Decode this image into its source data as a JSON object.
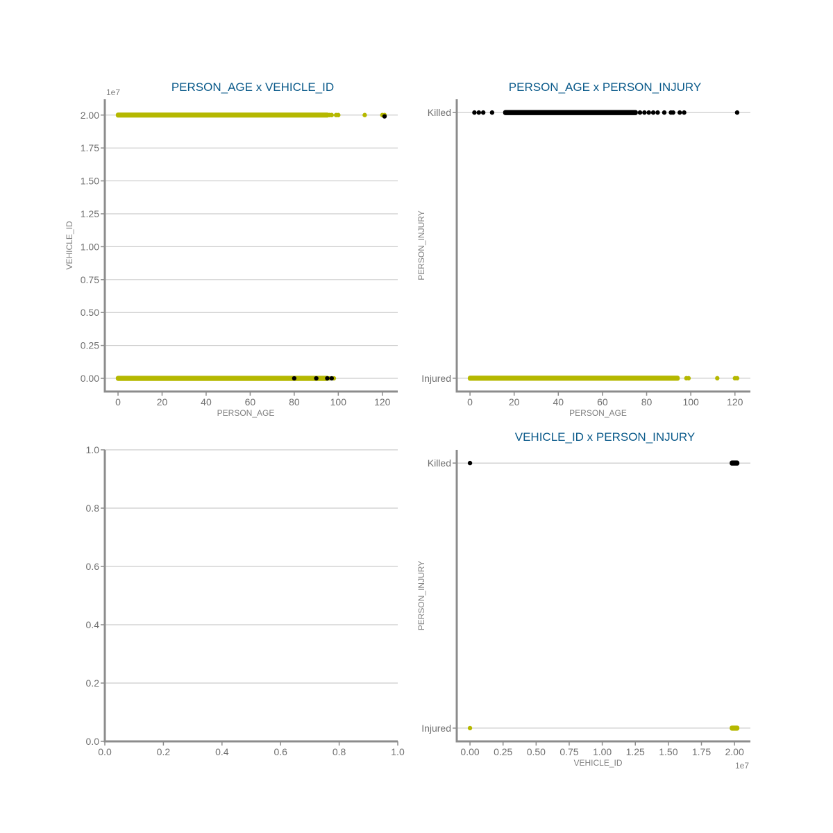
{
  "colors": {
    "injured": "#b5b800",
    "killed": "#000000",
    "title": "#0a5a8a",
    "axis": "#8c8c8c",
    "grid": "#cccccc"
  },
  "chart_data": [
    {
      "id": "age-vs-vehicle",
      "type": "scatter",
      "title": "PERSON_AGE x VEHICLE_ID",
      "xlabel": "PERSON_AGE",
      "ylabel": "VEHICLE_ID",
      "x_ticks": [
        "0",
        "20",
        "40",
        "60",
        "80",
        "100",
        "120"
      ],
      "y_ticks": [
        "0.00",
        "0.25",
        "0.50",
        "0.75",
        "1.00",
        "1.25",
        "1.50",
        "1.75",
        "2.00"
      ],
      "y_offset_text": "1e7",
      "xlim": [
        -6,
        127
      ],
      "ylim": [
        -0.1,
        2.12
      ],
      "grid": "y",
      "series": [
        {
          "color": "injured",
          "bands": [
            {
              "x_from": 0,
              "x_to": 95,
              "y": 0.0
            },
            {
              "x_from": 0,
              "x_to": 95,
              "y": 2.0
            }
          ],
          "points": [
            [
              96,
              2.0
            ],
            [
              97,
              2.0
            ],
            [
              99,
              2.0
            ],
            [
              100,
              2.0
            ],
            [
              112,
              2.0
            ],
            [
              120,
              2.0
            ],
            [
              121,
              2.0
            ],
            [
              96,
              0.0
            ],
            [
              98,
              0.0
            ]
          ]
        },
        {
          "color": "killed",
          "points": [
            [
              80,
              0.0
            ],
            [
              90,
              0.0
            ],
            [
              95,
              0.0
            ],
            [
              97,
              0.0
            ],
            [
              121,
              1.99
            ]
          ]
        }
      ]
    },
    {
      "id": "age-vs-injury",
      "type": "scatter",
      "title": "PERSON_AGE x PERSON_INJURY",
      "xlabel": "PERSON_AGE",
      "ylabel": "PERSON_INJURY",
      "x_ticks": [
        "0",
        "20",
        "40",
        "60",
        "80",
        "100",
        "120"
      ],
      "y_categories": [
        "Injured",
        "Killed"
      ],
      "xlim": [
        -6,
        127
      ],
      "ylim": [
        -0.05,
        1.05
      ],
      "grid": "y",
      "series": [
        {
          "color": "injured",
          "bands": [
            {
              "x_from": 0,
              "x_to": 94,
              "y": 0
            }
          ],
          "points": [
            [
              98,
              0
            ],
            [
              99,
              0
            ],
            [
              112,
              0
            ],
            [
              120,
              0
            ],
            [
              121,
              0
            ]
          ]
        },
        {
          "color": "killed",
          "bands": [
            {
              "x_from": 16,
              "x_to": 75,
              "y": 1
            }
          ],
          "points": [
            [
              2,
              1
            ],
            [
              4,
              1
            ],
            [
              6,
              1
            ],
            [
              10,
              1
            ],
            [
              77,
              1
            ],
            [
              79,
              1
            ],
            [
              81,
              1
            ],
            [
              83,
              1
            ],
            [
              85,
              1
            ],
            [
              88,
              1
            ],
            [
              91,
              1
            ],
            [
              92,
              1
            ],
            [
              95,
              1
            ],
            [
              97,
              1
            ],
            [
              121,
              1
            ]
          ]
        }
      ]
    },
    {
      "id": "empty-axes",
      "type": "scatter",
      "title": "",
      "xlabel": "",
      "ylabel": "",
      "x_ticks": [
        "0.0",
        "0.2",
        "0.4",
        "0.6",
        "0.8",
        "1.0"
      ],
      "y_ticks": [
        "0.0",
        "0.2",
        "0.4",
        "0.6",
        "0.8",
        "1.0"
      ],
      "xlim": [
        0,
        1
      ],
      "ylim": [
        0,
        1
      ],
      "grid": "y",
      "series": []
    },
    {
      "id": "vehicle-vs-injury",
      "type": "scatter",
      "title": "VEHICLE_ID x PERSON_INJURY",
      "xlabel": "VEHICLE_ID",
      "ylabel": "PERSON_INJURY",
      "x_ticks": [
        "0.00",
        "0.25",
        "0.50",
        "0.75",
        "1.00",
        "1.25",
        "1.50",
        "1.75",
        "2.00"
      ],
      "x_offset_text": "1e7",
      "y_categories": [
        "Injured",
        "Killed"
      ],
      "xlim": [
        -0.1,
        2.12
      ],
      "ylim": [
        -0.05,
        1.05
      ],
      "grid": "y",
      "series": [
        {
          "color": "injured",
          "bands": [
            {
              "x_from": 1.98,
              "x_to": 2.02,
              "y": 0
            }
          ],
          "points": [
            [
              0.0,
              0
            ]
          ]
        },
        {
          "color": "killed",
          "bands": [
            {
              "x_from": 1.98,
              "x_to": 2.02,
              "y": 1
            }
          ],
          "points": [
            [
              0.0,
              1
            ]
          ]
        }
      ]
    }
  ]
}
